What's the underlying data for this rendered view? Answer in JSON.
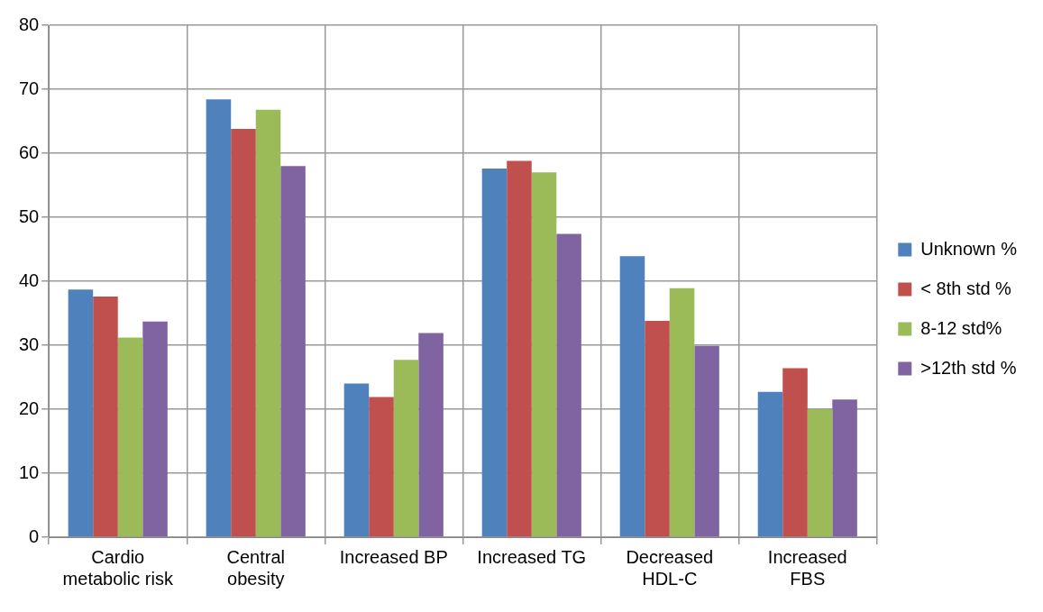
{
  "chart_data": {
    "type": "bar",
    "categories": [
      "Cardio metabolic risk",
      "Central obesity",
      "Increased BP",
      "Increased TG",
      "Decreased HDL-C",
      "Increased FBS"
    ],
    "series": [
      {
        "name": "Unknown %",
        "color": "#4f81bd",
        "values": [
          38.7,
          68.4,
          24.0,
          57.6,
          43.9,
          22.7
        ]
      },
      {
        "name": "< 8th std %",
        "color": "#c0504d",
        "values": [
          37.6,
          63.8,
          21.9,
          58.8,
          33.8,
          26.4
        ]
      },
      {
        "name": "8-12 std%",
        "color": "#9bbb59",
        "values": [
          31.2,
          66.8,
          27.7,
          57.0,
          38.9,
          20.0
        ]
      },
      {
        "name": ">12th std %",
        "color": "#8064a2",
        "values": [
          33.7,
          58.0,
          31.9,
          47.4,
          29.9,
          21.5
        ]
      }
    ],
    "ylim": [
      0,
      80
    ],
    "yticks": [
      0,
      10,
      20,
      30,
      40,
      50,
      60,
      70,
      80
    ],
    "grid": true,
    "legend": "right"
  }
}
